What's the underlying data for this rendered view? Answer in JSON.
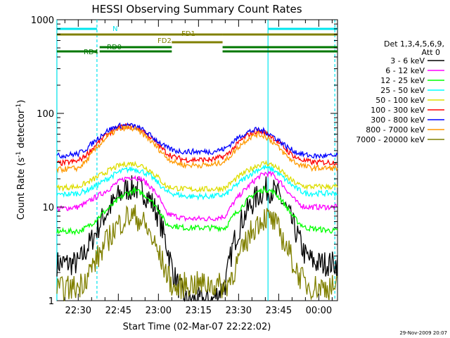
{
  "chart_data": {
    "type": "line",
    "title": "HESSI Observing Summary Count Rates",
    "xlabel": "Start Time (02-Mar-07 22:22:02)",
    "ylabel_main": "Count Rate (s",
    "ylabel_sup1": "-1",
    "ylabel_mid": " detector",
    "ylabel_sup2": "-1",
    "ylabel_end": ")",
    "y_scale": "log",
    "ylim": [
      1,
      1000
    ],
    "xlim": [
      "22:22:02",
      "00:07:00"
    ],
    "x_ticks": [
      "22:30",
      "22:45",
      "23:00",
      "23:15",
      "23:30",
      "23:45",
      "00:00"
    ],
    "y_ticks": [
      "1",
      "10",
      "100",
      "1000"
    ],
    "legend_header": [
      "Det 1,3,4,5,6,9,",
      "Att 0"
    ],
    "legend_position": "right",
    "timestamp": "29-Nov-2009 20:07",
    "series": [
      {
        "name": "3 - 6 keV",
        "color": "#000000",
        "t": [
          "22:22",
          "22:30",
          "22:33",
          "22:36",
          "22:39",
          "22:42",
          "22:45",
          "22:48",
          "22:51",
          "22:54",
          "22:57",
          "23:00",
          "23:03",
          "23:06",
          "23:10",
          "23:15",
          "23:20",
          "23:25",
          "23:28",
          "23:31",
          "23:34",
          "23:37",
          "23:40",
          "23:43",
          "23:46",
          "23:49",
          "23:52",
          "23:55",
          "23:58",
          "00:00",
          "00:07"
        ],
        "v": [
          2.5,
          2.5,
          3.5,
          5,
          7.5,
          10,
          13,
          15.5,
          16,
          15,
          12,
          8,
          4,
          1.8,
          1,
          1,
          1,
          1.5,
          4,
          7,
          10,
          13,
          15.5,
          15,
          12,
          8,
          5,
          3,
          2.6,
          2.5,
          2.5
        ]
      },
      {
        "name": "6 - 12 keV",
        "color": "#ff00ff",
        "t": [
          "22:22",
          "22:30",
          "22:33",
          "22:36",
          "22:39",
          "22:42",
          "22:45",
          "22:48",
          "22:51",
          "22:54",
          "22:57",
          "23:00",
          "23:03",
          "23:10",
          "23:20",
          "23:25",
          "23:28",
          "23:31",
          "23:34",
          "23:37",
          "23:40",
          "23:43",
          "23:46",
          "23:49",
          "23:52",
          "23:55",
          "00:07"
        ],
        "v": [
          9.5,
          10,
          11,
          12.5,
          14,
          16,
          18.5,
          20.5,
          21,
          19.5,
          16.5,
          13,
          8.5,
          7.5,
          7.5,
          8,
          11,
          14,
          17,
          20.5,
          23,
          22,
          18,
          14,
          11,
          10,
          10
        ]
      },
      {
        "name": "12 - 25 keV",
        "color": "#00ff00",
        "t": [
          "22:22",
          "22:30",
          "22:33",
          "22:36",
          "22:39",
          "22:42",
          "22:45",
          "22:48",
          "22:51",
          "22:54",
          "22:57",
          "23:00",
          "23:03",
          "23:10",
          "23:20",
          "23:25",
          "23:28",
          "23:31",
          "23:34",
          "23:37",
          "23:40",
          "23:43",
          "23:46",
          "23:49",
          "23:52",
          "23:55",
          "00:07"
        ],
        "v": [
          5.5,
          5.5,
          6,
          7,
          8.5,
          10,
          12,
          14,
          15,
          14,
          12,
          9.5,
          6.5,
          6,
          6,
          6,
          8,
          10,
          12.5,
          14.5,
          15.5,
          14.5,
          12,
          9,
          7,
          6,
          5.5
        ]
      },
      {
        "name": "25 - 50 keV",
        "color": "#00ffff",
        "t": [
          "22:22",
          "22:30",
          "22:33",
          "22:36",
          "22:39",
          "22:42",
          "22:45",
          "22:48",
          "22:51",
          "22:54",
          "22:57",
          "23:00",
          "23:03",
          "23:10",
          "23:20",
          "23:25",
          "23:28",
          "23:31",
          "23:34",
          "23:37",
          "23:40",
          "23:43",
          "23:46",
          "23:49",
          "23:52",
          "23:55",
          "00:07"
        ],
        "v": [
          13.5,
          14,
          15,
          16.5,
          18.5,
          21,
          23.5,
          25,
          25.5,
          24,
          21.5,
          18,
          14.5,
          13,
          13,
          13.5,
          16,
          19,
          22,
          25,
          26.5,
          25,
          21.5,
          18,
          15.5,
          14,
          14
        ]
      },
      {
        "name": "50 - 100 keV",
        "color": "#dddd00",
        "t": [
          "22:22",
          "22:30",
          "22:33",
          "22:36",
          "22:39",
          "22:42",
          "22:45",
          "22:48",
          "22:51",
          "22:54",
          "22:57",
          "23:00",
          "23:03",
          "23:10",
          "23:20",
          "23:25",
          "23:28",
          "23:31",
          "23:34",
          "23:37",
          "23:40",
          "23:43",
          "23:46",
          "23:49",
          "23:52",
          "23:55",
          "00:07"
        ],
        "v": [
          16,
          16.5,
          18,
          20,
          22.5,
          25,
          27.5,
          29,
          29,
          27.5,
          24.5,
          20.5,
          16.5,
          15.5,
          15.5,
          16,
          19,
          22,
          25,
          28,
          29.5,
          28,
          24,
          20,
          17.5,
          16.5,
          16.5
        ]
      },
      {
        "name": "100 - 300 keV",
        "color": "#ff0000",
        "t": [
          "22:22",
          "22:30",
          "22:33",
          "22:36",
          "22:39",
          "22:42",
          "22:45",
          "22:48",
          "22:51",
          "22:54",
          "22:57",
          "23:00",
          "23:03",
          "23:06",
          "23:10",
          "23:20",
          "23:25",
          "23:28",
          "23:31",
          "23:34",
          "23:37",
          "23:40",
          "23:43",
          "23:46",
          "23:49",
          "23:52",
          "23:55",
          "23:58",
          "00:07"
        ],
        "v": [
          29,
          31,
          36,
          44,
          54,
          63,
          70,
          73,
          72,
          66,
          56,
          46,
          38,
          34,
          32,
          32,
          35,
          42,
          52,
          60,
          65,
          62,
          55,
          46,
          38,
          33,
          31,
          30,
          30
        ]
      },
      {
        "name": "300 - 800 keV",
        "color": "#0000ff",
        "t": [
          "22:22",
          "22:30",
          "22:33",
          "22:36",
          "22:39",
          "22:42",
          "22:45",
          "22:48",
          "22:51",
          "22:54",
          "22:57",
          "23:00",
          "23:03",
          "23:06",
          "23:10",
          "23:20",
          "23:25",
          "23:28",
          "23:31",
          "23:34",
          "23:37",
          "23:40",
          "23:43",
          "23:46",
          "23:49",
          "23:52",
          "23:55",
          "23:58",
          "00:07"
        ],
        "v": [
          35,
          37,
          42,
          50,
          60,
          68,
          73,
          75,
          73,
          67,
          58,
          50,
          43,
          40,
          39,
          39,
          42,
          50,
          58,
          64,
          67,
          64,
          57,
          49,
          42,
          38,
          36,
          35,
          35
        ]
      },
      {
        "name": "800 - 7000 keV",
        "color": "#ff9900",
        "t": [
          "22:22",
          "22:30",
          "22:33",
          "22:36",
          "22:39",
          "22:42",
          "22:45",
          "22:48",
          "22:51",
          "22:54",
          "22:57",
          "23:00",
          "23:03",
          "23:06",
          "23:10",
          "23:20",
          "23:25",
          "23:28",
          "23:31",
          "23:34",
          "23:37",
          "23:40",
          "23:43",
          "23:46",
          "23:49",
          "23:52",
          "23:55",
          "23:58",
          "00:07"
        ],
        "v": [
          25,
          26,
          31,
          40,
          50,
          60,
          67,
          70,
          68,
          61,
          51,
          42,
          34,
          30,
          28,
          28,
          31,
          38,
          47,
          55,
          60,
          57,
          49,
          40,
          33,
          29,
          27,
          26,
          26
        ]
      },
      {
        "name": "7000 - 20000 keV",
        "color": "#808000",
        "t": [
          "22:22",
          "22:30",
          "22:33",
          "22:36",
          "22:39",
          "22:42",
          "22:45",
          "22:48",
          "22:51",
          "22:54",
          "22:57",
          "23:00",
          "23:03",
          "23:06",
          "23:10",
          "23:20",
          "23:25",
          "23:28",
          "23:31",
          "23:34",
          "23:37",
          "23:40",
          "23:43",
          "23:46",
          "23:49",
          "23:52",
          "23:55",
          "23:58",
          "00:07"
        ],
        "v": [
          1.3,
          1.4,
          1.8,
          2.5,
          3.5,
          5,
          6.5,
          7.8,
          8,
          7,
          5,
          3.2,
          2,
          1.3,
          1.5,
          1.5,
          1.4,
          2,
          3.2,
          5,
          6.8,
          7.8,
          7,
          5,
          3.2,
          2,
          1.5,
          1.4,
          1.4
        ]
      }
    ],
    "flags": [
      {
        "label": "N",
        "color": "#00e5ee",
        "row": 1,
        "segments": [
          [
            "22:22",
            "22:37"
          ],
          [
            "23:41",
            "00:07"
          ]
        ]
      },
      {
        "label": "FD1",
        "color": "#808000",
        "row": 2,
        "segments": [
          [
            "22:22",
            "23:24"
          ],
          [
            "23:24",
            "00:07"
          ]
        ]
      },
      {
        "label": "FD2",
        "color": "#808000",
        "row": 3,
        "segments": [
          [
            "23:05",
            "23:24"
          ]
        ]
      },
      {
        "label": "RD0",
        "color": "#007700",
        "row": 4,
        "segments": [
          [
            "22:38",
            "23:05"
          ],
          [
            "23:24",
            "00:07"
          ]
        ]
      },
      {
        "label": "RD4",
        "color": "#007700",
        "row": 5,
        "segments": [
          [
            "22:22",
            "22:37"
          ],
          [
            "22:38",
            "23:05"
          ],
          [
            "23:24",
            "23:52"
          ],
          [
            "23:52",
            "00:07"
          ]
        ]
      }
    ],
    "vertical_markers": [
      {
        "t": "22:22",
        "style": "solid"
      },
      {
        "t": "22:37",
        "style": "dashed"
      },
      {
        "t": "23:41",
        "style": "solid"
      },
      {
        "t": "00:06",
        "style": "dashed"
      }
    ]
  }
}
